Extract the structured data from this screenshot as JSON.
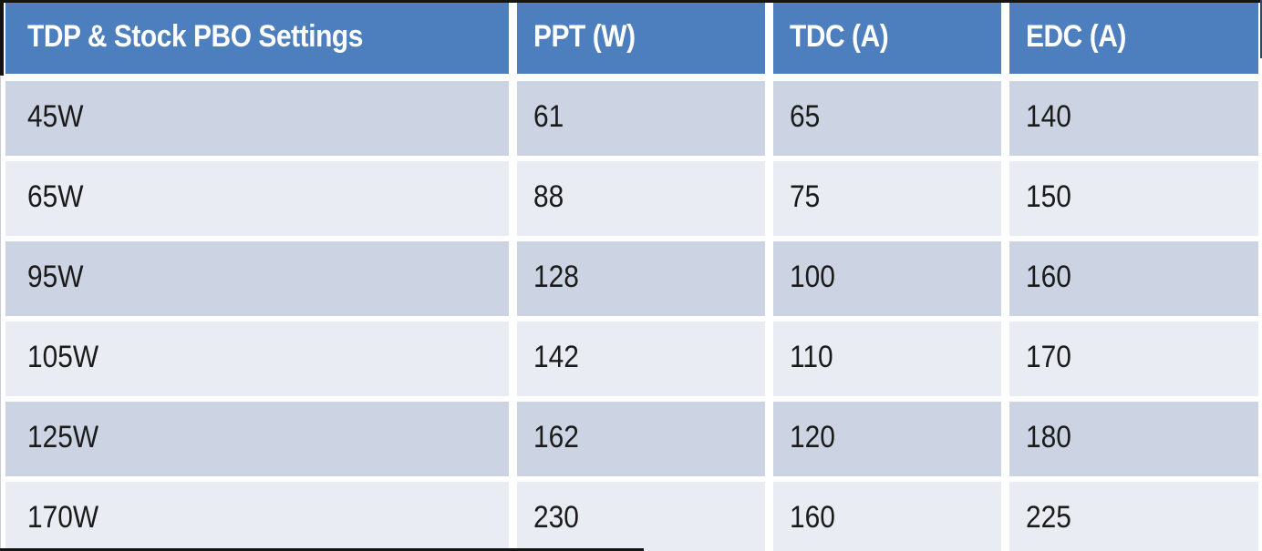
{
  "title": "TDP & Stock PBO Settings",
  "header": {
    "columns": [
      "TDP & Stock PBO Settings",
      "PPT (W)",
      "TDC (A)",
      "EDC (A)"
    ]
  },
  "rows": [
    {
      "cells": [
        "45W",
        "61",
        "65",
        "140"
      ]
    },
    {
      "cells": [
        "65W",
        "88",
        "75",
        "150"
      ]
    },
    {
      "cells": [
        "95W",
        "128",
        "100",
        "160"
      ]
    },
    {
      "cells": [
        "105W",
        "142",
        "110",
        "170"
      ]
    },
    {
      "cells": [
        "125W",
        "162",
        "120",
        "180"
      ]
    },
    {
      "cells": [
        "170W",
        "230",
        "160",
        "225"
      ]
    }
  ],
  "colors": {
    "header_bg": "#4d7ebd",
    "header_text": "#ffffff",
    "row_dark": "#ccd3e2",
    "row_light": "#e9ecf2",
    "cell_gap": "#ffffff",
    "border": "#141414",
    "body_text": "#1b1b1b"
  },
  "chart_data": {
    "type": "table",
    "title": "TDP & Stock PBO Settings",
    "columns": [
      "TDP & Stock PBO Settings",
      "PPT (W)",
      "TDC (A)",
      "EDC (A)"
    ],
    "rows": [
      [
        "45W",
        61,
        65,
        140
      ],
      [
        "65W",
        88,
        75,
        150
      ],
      [
        "95W",
        128,
        100,
        160
      ],
      [
        "105W",
        142,
        110,
        170
      ],
      [
        "125W",
        162,
        120,
        180
      ],
      [
        "170W",
        230,
        160,
        225
      ]
    ],
    "layout": {
      "header_style": "blue banner, white bold text",
      "row_style": "alternating banded rows (dark/light blue-gray)",
      "grid": "white gaps between cells, partial dark outer border"
    }
  }
}
